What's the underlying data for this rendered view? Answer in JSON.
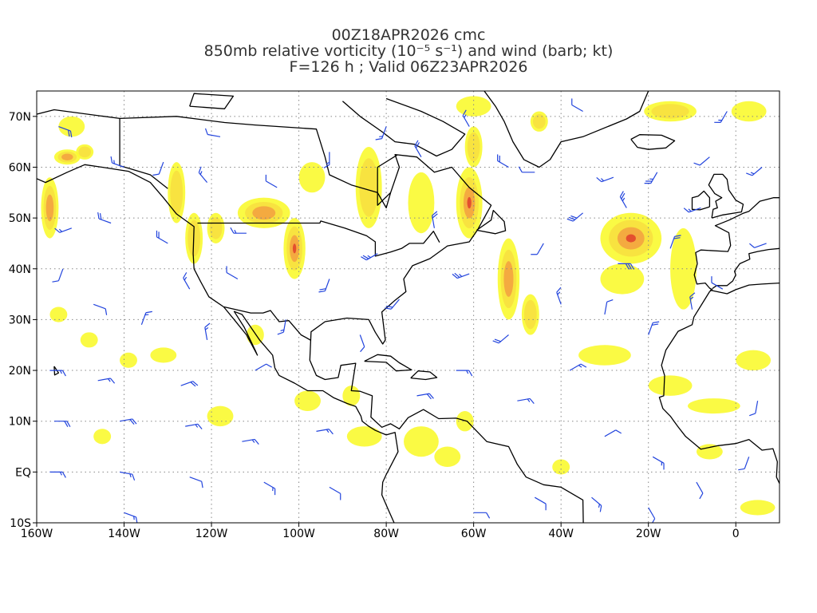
{
  "title": {
    "line1": "00Z18APR2026 cmc",
    "line2": "850mb relative vorticity (10⁻⁵ s⁻¹) and wind (barb; kt)",
    "line3": "F=126 h ; Valid 06Z23APR2026"
  },
  "axes": {
    "lon_ticks": [
      {
        "lon": -160,
        "label": "160W"
      },
      {
        "lon": -140,
        "label": "140W"
      },
      {
        "lon": -120,
        "label": "120W"
      },
      {
        "lon": -100,
        "label": "100W"
      },
      {
        "lon": -80,
        "label": "80W"
      },
      {
        "lon": -60,
        "label": "60W"
      },
      {
        "lon": -40,
        "label": "40W"
      },
      {
        "lon": -20,
        "label": "20W"
      },
      {
        "lon": 0,
        "label": "0"
      }
    ],
    "lat_ticks": [
      {
        "lat": 70,
        "label": "70N"
      },
      {
        "lat": 60,
        "label": "60N"
      },
      {
        "lat": 50,
        "label": "50N"
      },
      {
        "lat": 40,
        "label": "40N"
      },
      {
        "lat": 30,
        "label": "30N"
      },
      {
        "lat": 20,
        "label": "20N"
      },
      {
        "lat": 10,
        "label": "10N"
      },
      {
        "lat": 0,
        "label": "EQ"
      },
      {
        "lat": -10,
        "label": "10S"
      }
    ],
    "lon_range": [
      -160,
      10
    ],
    "lat_range": [
      -10,
      75
    ]
  },
  "colors": {
    "shade_light": "#fafa30",
    "shade_mid": "#f7e040",
    "shade_orange": "#f3a340",
    "shade_red": "#e2452c",
    "coast": "#000000",
    "barb": "#2244dd",
    "grid": "#888888"
  },
  "vorticity_blobs": [
    {
      "lon": -157,
      "lat": 52,
      "rx": 2,
      "ry": 6,
      "level": 3
    },
    {
      "lon": -153,
      "lat": 62,
      "rx": 3,
      "ry": 1.5,
      "level": 3
    },
    {
      "lon": -149,
      "lat": 63,
      "rx": 2,
      "ry": 1.5,
      "level": 2
    },
    {
      "lon": -152,
      "lat": 68,
      "rx": 3,
      "ry": 2,
      "level": 1
    },
    {
      "lon": -128,
      "lat": 55,
      "rx": 2,
      "ry": 6,
      "level": 2
    },
    {
      "lon": -124,
      "lat": 46,
      "rx": 2,
      "ry": 5,
      "level": 2
    },
    {
      "lon": -119,
      "lat": 48,
      "rx": 2,
      "ry": 3,
      "level": 2
    },
    {
      "lon": -108,
      "lat": 51,
      "rx": 6,
      "ry": 3,
      "level": 3
    },
    {
      "lon": -101,
      "lat": 44,
      "rx": 2.5,
      "ry": 6,
      "level": 4
    },
    {
      "lon": -97,
      "lat": 58,
      "rx": 3,
      "ry": 3,
      "level": 1
    },
    {
      "lon": -84,
      "lat": 56,
      "rx": 3,
      "ry": 8,
      "level": 2
    },
    {
      "lon": -72,
      "lat": 53,
      "rx": 3,
      "ry": 6,
      "level": 1
    },
    {
      "lon": -61,
      "lat": 53,
      "rx": 3,
      "ry": 7,
      "level": 4
    },
    {
      "lon": -60,
      "lat": 64,
      "rx": 2,
      "ry": 4,
      "level": 2
    },
    {
      "lon": -52,
      "lat": 38,
      "rx": 2.5,
      "ry": 8,
      "level": 3
    },
    {
      "lon": -47,
      "lat": 31,
      "rx": 2,
      "ry": 4,
      "level": 2
    },
    {
      "lon": -60,
      "lat": 72,
      "rx": 4,
      "ry": 2,
      "level": 1
    },
    {
      "lon": -45,
      "lat": 69,
      "rx": 2,
      "ry": 2,
      "level": 2
    },
    {
      "lon": -24,
      "lat": 46,
      "rx": 7,
      "ry": 5,
      "level": 4
    },
    {
      "lon": -26,
      "lat": 38,
      "rx": 5,
      "ry": 3,
      "level": 1
    },
    {
      "lon": -12,
      "lat": 40,
      "rx": 3,
      "ry": 8,
      "level": 1
    },
    {
      "lon": -30,
      "lat": 23,
      "rx": 6,
      "ry": 2,
      "level": 1
    },
    {
      "lon": -15,
      "lat": 71,
      "rx": 6,
      "ry": 2,
      "level": 2
    },
    {
      "lon": 3,
      "lat": 71,
      "rx": 4,
      "ry": 2,
      "level": 1
    },
    {
      "lon": 4,
      "lat": 22,
      "rx": 4,
      "ry": 2,
      "level": 1
    },
    {
      "lon": -15,
      "lat": 17,
      "rx": 5,
      "ry": 2,
      "level": 1
    },
    {
      "lon": -5,
      "lat": 13,
      "rx": 6,
      "ry": 1.5,
      "level": 1
    },
    {
      "lon": -85,
      "lat": 7,
      "rx": 4,
      "ry": 2,
      "level": 1
    },
    {
      "lon": -118,
      "lat": 11,
      "rx": 3,
      "ry": 2,
      "level": 1
    },
    {
      "lon": -148,
      "lat": 26,
      "rx": 2,
      "ry": 1.5,
      "level": 1
    },
    {
      "lon": -139,
      "lat": 22,
      "rx": 2,
      "ry": 1.5,
      "level": 1
    },
    {
      "lon": -131,
      "lat": 23,
      "rx": 3,
      "ry": 1.5,
      "level": 1
    },
    {
      "lon": -72,
      "lat": 6,
      "rx": 4,
      "ry": 3,
      "level": 1
    },
    {
      "lon": -66,
      "lat": 3,
      "rx": 3,
      "ry": 2,
      "level": 1
    },
    {
      "lon": -62,
      "lat": 10,
      "rx": 2,
      "ry": 2,
      "level": 1
    },
    {
      "lon": -98,
      "lat": 14,
      "rx": 3,
      "ry": 2,
      "level": 1
    },
    {
      "lon": -88,
      "lat": 15,
      "rx": 2,
      "ry": 2,
      "level": 1
    },
    {
      "lon": -40,
      "lat": 1,
      "rx": 2,
      "ry": 1.5,
      "level": 1
    },
    {
      "lon": 5,
      "lat": -7,
      "rx": 4,
      "ry": 1.5,
      "level": 1
    },
    {
      "lon": -145,
      "lat": 7,
      "rx": 2,
      "ry": 1.5,
      "level": 1
    },
    {
      "lon": -155,
      "lat": 31,
      "rx": 2,
      "ry": 1.5,
      "level": 1
    },
    {
      "lon": -110,
      "lat": 27,
      "rx": 2,
      "ry": 2,
      "level": 1
    },
    {
      "lon": -6,
      "lat": 4,
      "rx": 3,
      "ry": 1.5,
      "level": 1
    }
  ],
  "wind_barbs": [
    {
      "lon": -155,
      "lat": 68,
      "dir": 110,
      "kt": 20
    },
    {
      "lon": -140,
      "lat": 60,
      "dir": 290,
      "kt": 15
    },
    {
      "lon": -131,
      "lat": 61,
      "dir": 200,
      "kt": 10
    },
    {
      "lon": -121,
      "lat": 57,
      "dir": 320,
      "kt": 15
    },
    {
      "lon": -105,
      "lat": 56,
      "dir": 300,
      "kt": 10
    },
    {
      "lon": -93,
      "lat": 63,
      "dir": 180,
      "kt": 15
    },
    {
      "lon": -72,
      "lat": 62,
      "dir": 330,
      "kt": 20
    },
    {
      "lon": -61,
      "lat": 68,
      "dir": 330,
      "kt": 15
    },
    {
      "lon": -52,
      "lat": 60,
      "dir": 300,
      "kt": 20
    },
    {
      "lon": -46,
      "lat": 59,
      "dir": 270,
      "kt": 10
    },
    {
      "lon": -28,
      "lat": 58,
      "dir": 250,
      "kt": 15
    },
    {
      "lon": -18,
      "lat": 59,
      "dir": 210,
      "kt": 25
    },
    {
      "lon": -6,
      "lat": 62,
      "dir": 230,
      "kt": 10
    },
    {
      "lon": -8,
      "lat": 52,
      "dir": 250,
      "kt": 15
    },
    {
      "lon": -35,
      "lat": 51,
      "dir": 230,
      "kt": 30
    },
    {
      "lon": -25,
      "lat": 52,
      "dir": 330,
      "kt": 25
    },
    {
      "lon": -15,
      "lat": 44,
      "dir": 20,
      "kt": 20
    },
    {
      "lon": -27,
      "lat": 41,
      "dir": 90,
      "kt": 30
    },
    {
      "lon": -44,
      "lat": 45,
      "dir": 210,
      "kt": 10
    },
    {
      "lon": -69,
      "lat": 48,
      "dir": 350,
      "kt": 20
    },
    {
      "lon": -61,
      "lat": 39,
      "dir": 250,
      "kt": 25
    },
    {
      "lon": -52,
      "lat": 27,
      "dir": 230,
      "kt": 20
    },
    {
      "lon": -40,
      "lat": 33,
      "dir": 340,
      "kt": 15
    },
    {
      "lon": -30,
      "lat": 31,
      "dir": 10,
      "kt": 10
    },
    {
      "lon": -20,
      "lat": 27,
      "dir": 20,
      "kt": 20
    },
    {
      "lon": -10,
      "lat": 32,
      "dir": 350,
      "kt": 15
    },
    {
      "lon": -38,
      "lat": 20,
      "dir": 60,
      "kt": 15
    },
    {
      "lon": -50,
      "lat": 14,
      "dir": 80,
      "kt": 15
    },
    {
      "lon": -30,
      "lat": 7,
      "dir": 60,
      "kt": 10
    },
    {
      "lon": -19,
      "lat": 3,
      "dir": 120,
      "kt": 15
    },
    {
      "lon": -9,
      "lat": -2,
      "dir": 150,
      "kt": 10
    },
    {
      "lon": 3,
      "lat": 3,
      "dir": 200,
      "kt": 10
    },
    {
      "lon": -112,
      "lat": 47,
      "dir": 270,
      "kt": 15
    },
    {
      "lon": -114,
      "lat": 38,
      "dir": 300,
      "kt": 10
    },
    {
      "lon": -103,
      "lat": 30,
      "dir": 190,
      "kt": 15
    },
    {
      "lon": -93,
      "lat": 38,
      "dir": 200,
      "kt": 20
    },
    {
      "lon": -82,
      "lat": 43,
      "dir": 240,
      "kt": 25
    },
    {
      "lon": -77,
      "lat": 34,
      "dir": 220,
      "kt": 20
    },
    {
      "lon": -86,
      "lat": 27,
      "dir": 160,
      "kt": 10
    },
    {
      "lon": -125,
      "lat": 36,
      "dir": 330,
      "kt": 15
    },
    {
      "lon": -130,
      "lat": 45,
      "dir": 300,
      "kt": 20
    },
    {
      "lon": -143,
      "lat": 49,
      "dir": 290,
      "kt": 20
    },
    {
      "lon": -152,
      "lat": 48,
      "dir": 250,
      "kt": 15
    },
    {
      "lon": -154,
      "lat": 40,
      "dir": 200,
      "kt": 10
    },
    {
      "lon": -147,
      "lat": 33,
      "dir": 110,
      "kt": 10
    },
    {
      "lon": -136,
      "lat": 29,
      "dir": 20,
      "kt": 15
    },
    {
      "lon": -121,
      "lat": 26,
      "dir": 350,
      "kt": 15
    },
    {
      "lon": -110,
      "lat": 20,
      "dir": 60,
      "kt": 10
    },
    {
      "lon": -127,
      "lat": 17,
      "dir": 70,
      "kt": 20
    },
    {
      "lon": -146,
      "lat": 18,
      "dir": 80,
      "kt": 15
    },
    {
      "lon": -157,
      "lat": 20,
      "dir": 90,
      "kt": 15
    },
    {
      "lon": -156,
      "lat": 10,
      "dir": 90,
      "kt": 20
    },
    {
      "lon": -141,
      "lat": 10,
      "dir": 80,
      "kt": 20
    },
    {
      "lon": -126,
      "lat": 9,
      "dir": 80,
      "kt": 15
    },
    {
      "lon": -113,
      "lat": 6,
      "dir": 80,
      "kt": 15
    },
    {
      "lon": -96,
      "lat": 8,
      "dir": 80,
      "kt": 15
    },
    {
      "lon": -157,
      "lat": 0,
      "dir": 90,
      "kt": 15
    },
    {
      "lon": -141,
      "lat": 0,
      "dir": 100,
      "kt": 15
    },
    {
      "lon": -125,
      "lat": -1,
      "dir": 110,
      "kt": 10
    },
    {
      "lon": -108,
      "lat": -2,
      "dir": 120,
      "kt": 15
    },
    {
      "lon": -93,
      "lat": -3,
      "dir": 120,
      "kt": 10
    },
    {
      "lon": -140,
      "lat": -8,
      "dir": 110,
      "kt": 15
    },
    {
      "lon": -73,
      "lat": 15,
      "dir": 80,
      "kt": 20
    },
    {
      "lon": -64,
      "lat": 20,
      "dir": 90,
      "kt": 15
    },
    {
      "lon": -46,
      "lat": -5,
      "dir": 120,
      "kt": 10
    },
    {
      "lon": -33,
      "lat": -5,
      "dir": 130,
      "kt": 15
    },
    {
      "lon": -20,
      "lat": -7,
      "dir": 150,
      "kt": 10
    },
    {
      "lon": -60,
      "lat": -8,
      "dir": 90,
      "kt": 10
    },
    {
      "lon": -118,
      "lat": 66,
      "dir": 280,
      "kt": 10
    },
    {
      "lon": -80,
      "lat": 68,
      "dir": 200,
      "kt": 15
    },
    {
      "lon": -35,
      "lat": 71,
      "dir": 300,
      "kt": 10
    },
    {
      "lon": -2,
      "lat": 71,
      "dir": 210,
      "kt": 15
    },
    {
      "lon": 6,
      "lat": 60,
      "dir": 230,
      "kt": 15
    },
    {
      "lon": 7,
      "lat": 45,
      "dir": 250,
      "kt": 10
    },
    {
      "lon": -3,
      "lat": 36,
      "dir": 300,
      "kt": 10
    },
    {
      "lon": 5,
      "lat": 14,
      "dir": 190,
      "kt": 10
    }
  ]
}
